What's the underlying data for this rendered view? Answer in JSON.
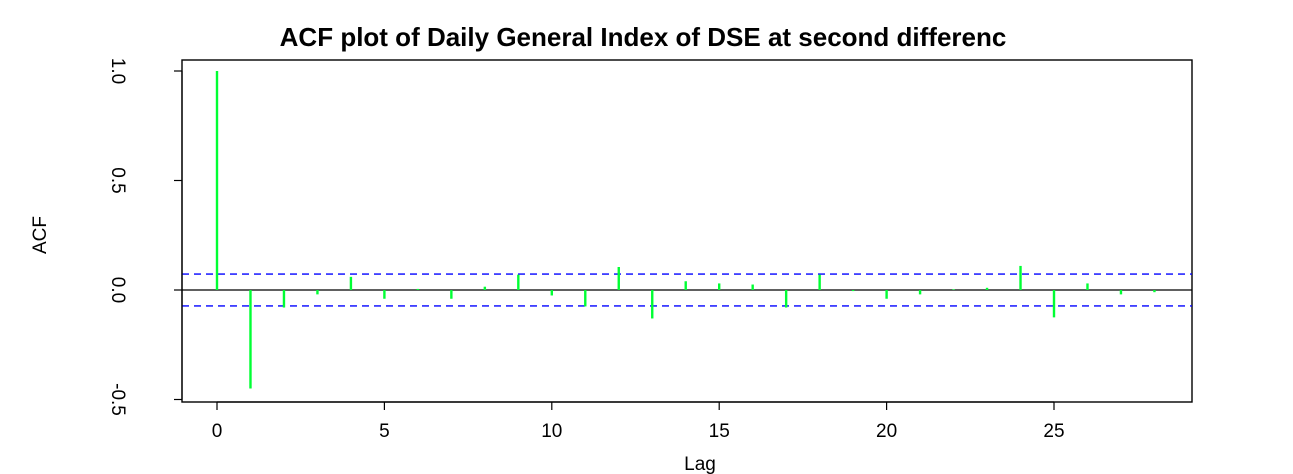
{
  "chart_data": {
    "type": "bar",
    "title": "ACF plot of Daily General Index of DSE at second differenc",
    "xlabel": "Lag",
    "ylabel": "ACF",
    "xlim": [
      -1,
      29
    ],
    "ylim": [
      -0.51,
      1.05
    ],
    "x_ticks": [
      0,
      5,
      10,
      15,
      20,
      25
    ],
    "x_tick_labels": [
      "0",
      "5",
      "10",
      "15",
      "20",
      "25"
    ],
    "y_ticks": [
      -0.5,
      0.0,
      0.5,
      1.0
    ],
    "y_tick_labels": [
      "-0.5",
      "0.0",
      "0.5",
      "1.0"
    ],
    "lags": [
      0,
      1,
      2,
      3,
      4,
      5,
      6,
      7,
      8,
      9,
      10,
      11,
      12,
      13,
      14,
      15,
      16,
      17,
      18,
      19,
      20,
      21,
      22,
      23,
      24,
      25,
      26,
      27,
      28
    ],
    "values": [
      1.0,
      -0.45,
      -0.08,
      -0.02,
      0.06,
      -0.04,
      0.005,
      -0.04,
      0.015,
      0.07,
      -0.025,
      -0.075,
      0.105,
      -0.13,
      0.04,
      0.03,
      0.025,
      -0.08,
      0.07,
      -0.005,
      -0.04,
      -0.02,
      0.003,
      0.01,
      0.11,
      -0.125,
      0.03,
      -0.02,
      -0.01
    ],
    "confidence_bound": 0.073,
    "grid": false,
    "legend": "none",
    "colors": {
      "bars": "#00ff33",
      "confidence": "#0000ff",
      "zero_line": "#000000",
      "axes": "#000000"
    }
  }
}
